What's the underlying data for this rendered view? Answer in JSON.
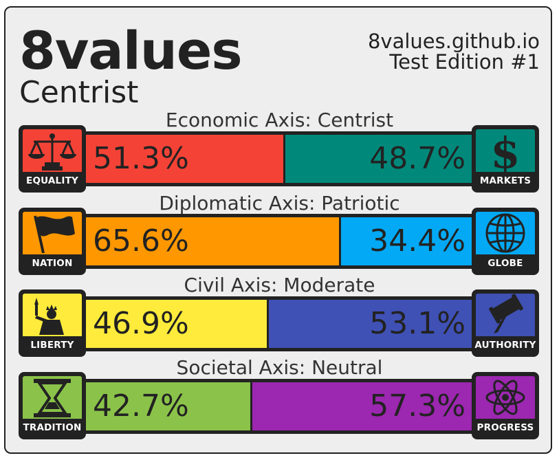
{
  "header": {
    "title": "8values",
    "ideology": "Centrist",
    "site": "8values.github.io",
    "edition": "Test Edition #1"
  },
  "axes": [
    {
      "label": "Economic Axis: Centrist",
      "left": {
        "value": "51.3%",
        "fraction": 0.513,
        "color": "#f44336",
        "icon_label": "EQUALITY",
        "icon_name": "scales-icon"
      },
      "right": {
        "value": "48.7%",
        "fraction": 0.487,
        "color": "#00897b",
        "icon_label": "MARKETS",
        "icon_name": "dollar-icon"
      }
    },
    {
      "label": "Diplomatic Axis: Patriotic",
      "left": {
        "value": "65.6%",
        "fraction": 0.656,
        "color": "#ff9800",
        "icon_label": "NATION",
        "icon_name": "flag-icon"
      },
      "right": {
        "value": "34.4%",
        "fraction": 0.344,
        "color": "#03a9f4",
        "icon_label": "GLOBE",
        "icon_name": "globe-icon"
      }
    },
    {
      "label": "Civil Axis: Moderate",
      "left": {
        "value": "46.9%",
        "fraction": 0.469,
        "color": "#ffeb3b",
        "icon_label": "LIBERTY",
        "icon_name": "statue-of-liberty-icon"
      },
      "right": {
        "value": "53.1%",
        "fraction": 0.531,
        "color": "#3f51b5",
        "icon_label": "AUTHORITY",
        "icon_name": "gavel-icon"
      }
    },
    {
      "label": "Societal Axis: Neutral",
      "left": {
        "value": "42.7%",
        "fraction": 0.427,
        "color": "#8bc34a",
        "icon_label": "TRADITION",
        "icon_name": "hourglass-icon"
      },
      "right": {
        "value": "57.3%",
        "fraction": 0.573,
        "color": "#9c27b0",
        "icon_label": "PROGRESS",
        "icon_name": "atom-icon"
      }
    }
  ]
}
